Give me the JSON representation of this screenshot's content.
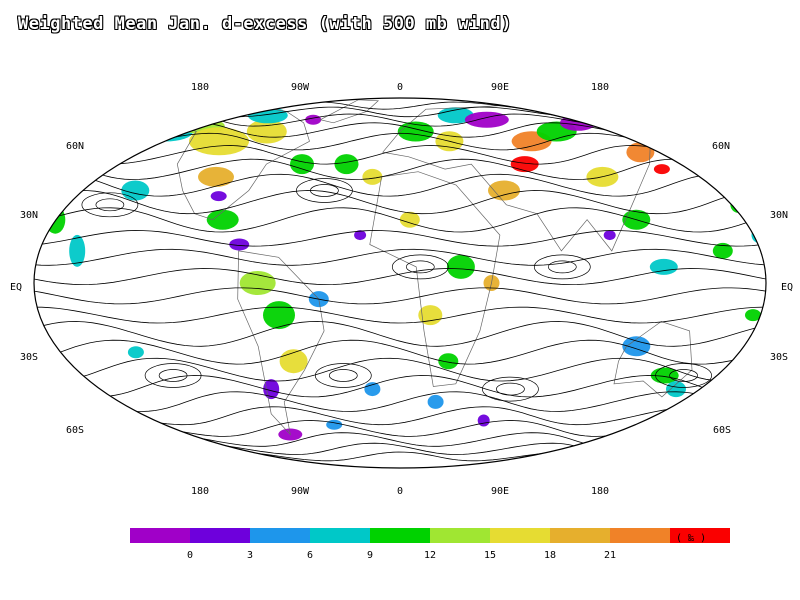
{
  "title": "Weighted Mean Jan. d-excess (with 500 mb wind)",
  "lon_labels_top": [
    "180",
    "90W",
    "0",
    "90E",
    "180"
  ],
  "lon_labels_bottom": [
    "180",
    "90W",
    "0",
    "90E",
    "180"
  ],
  "lat_labels_left": [
    "60N",
    "30N",
    "EQ",
    "30S",
    "60S"
  ],
  "lat_labels_right": [
    "60N",
    "30N",
    "EQ",
    "30S",
    "60S"
  ],
  "colorbar": {
    "colors": [
      "#a000c8",
      "#6e00dc",
      "#1e96eb",
      "#00c8c8",
      "#00d200",
      "#a0e632",
      "#e6dc32",
      "#e6af2d",
      "#f08228",
      "#fa0000"
    ],
    "tick_labels": [
      "0",
      "3",
      "6",
      "9",
      "12",
      "15",
      "18",
      "21"
    ],
    "unit": "( ‰ )"
  },
  "patches": [
    {
      "lon": -150,
      "lat": 55,
      "rx": 28,
      "ry": 10,
      "c": "#00c8c8"
    },
    {
      "lon": -130,
      "lat": 58,
      "rx": 22,
      "ry": 8,
      "c": "#a0e632"
    },
    {
      "lon": -110,
      "lat": 50,
      "rx": 30,
      "ry": 14,
      "c": "#e6dc32"
    },
    {
      "lon": -100,
      "lat": 35,
      "rx": 18,
      "ry": 10,
      "c": "#e6af2d"
    },
    {
      "lon": -85,
      "lat": 55,
      "rx": 20,
      "ry": 12,
      "c": "#e6dc32"
    },
    {
      "lon": -95,
      "lat": 65,
      "rx": 20,
      "ry": 8,
      "c": "#00c8c8"
    },
    {
      "lon": -60,
      "lat": 62,
      "rx": 8,
      "ry": 5,
      "c": "#a000c8"
    },
    {
      "lon": -55,
      "lat": 40,
      "rx": 12,
      "ry": 10,
      "c": "#00d200"
    },
    {
      "lon": -140,
      "lat": 30,
      "rx": 14,
      "ry": 10,
      "c": "#00c8c8"
    },
    {
      "lon": -175,
      "lat": 20,
      "rx": 10,
      "ry": 14,
      "c": "#00d200"
    },
    {
      "lon": -160,
      "lat": 10,
      "rx": 8,
      "ry": 16,
      "c": "#00c8c8"
    },
    {
      "lon": -90,
      "lat": 20,
      "rx": 16,
      "ry": 10,
      "c": "#00d200"
    },
    {
      "lon": -95,
      "lat": 28,
      "rx": 8,
      "ry": 5,
      "c": "#6e00dc"
    },
    {
      "lon": -80,
      "lat": 12,
      "rx": 10,
      "ry": 6,
      "c": "#6e00dc"
    },
    {
      "lon": -70,
      "lat": 0,
      "rx": 18,
      "ry": 12,
      "c": "#a0e632"
    },
    {
      "lon": -60,
      "lat": -10,
      "rx": 16,
      "ry": 14,
      "c": "#00d200"
    },
    {
      "lon": -55,
      "lat": -25,
      "rx": 14,
      "ry": 12,
      "c": "#e6dc32"
    },
    {
      "lon": -70,
      "lat": -35,
      "rx": 8,
      "ry": 10,
      "c": "#6e00dc"
    },
    {
      "lon": -70,
      "lat": -55,
      "rx": 12,
      "ry": 6,
      "c": "#a000c8"
    },
    {
      "lon": -40,
      "lat": -5,
      "rx": 10,
      "ry": 8,
      "c": "#1e96eb"
    },
    {
      "lon": -135,
      "lat": -22,
      "rx": 8,
      "ry": 6,
      "c": "#00c8c8"
    },
    {
      "lon": -30,
      "lat": 40,
      "rx": 12,
      "ry": 10,
      "c": "#00d200"
    },
    {
      "lon": -15,
      "lat": 35,
      "rx": 10,
      "ry": 8,
      "c": "#e6dc32"
    },
    {
      "lon": 10,
      "lat": 55,
      "rx": 18,
      "ry": 10,
      "c": "#00d200"
    },
    {
      "lon": 30,
      "lat": 50,
      "rx": 14,
      "ry": 10,
      "c": "#e6dc32"
    },
    {
      "lon": 40,
      "lat": 65,
      "rx": 18,
      "ry": 8,
      "c": "#00c8c8"
    },
    {
      "lon": 60,
      "lat": 62,
      "rx": 22,
      "ry": 8,
      "c": "#a000c8"
    },
    {
      "lon": 80,
      "lat": 50,
      "rx": 20,
      "ry": 10,
      "c": "#f08228"
    },
    {
      "lon": 70,
      "lat": 40,
      "rx": 14,
      "ry": 8,
      "c": "#fa0000"
    },
    {
      "lon": 55,
      "lat": 30,
      "rx": 16,
      "ry": 10,
      "c": "#e6af2d"
    },
    {
      "lon": 100,
      "lat": 55,
      "rx": 20,
      "ry": 10,
      "c": "#00d200"
    },
    {
      "lon": 110,
      "lat": 35,
      "rx": 16,
      "ry": 10,
      "c": "#e6dc32"
    },
    {
      "lon": 120,
      "lat": 60,
      "rx": 18,
      "ry": 8,
      "c": "#a000c8"
    },
    {
      "lon": 140,
      "lat": 45,
      "rx": 14,
      "ry": 10,
      "c": "#f08228"
    },
    {
      "lon": 145,
      "lat": 38,
      "rx": 8,
      "ry": 5,
      "c": "#fa0000"
    },
    {
      "lon": 120,
      "lat": 20,
      "rx": 14,
      "ry": 10,
      "c": "#00d200"
    },
    {
      "lon": 105,
      "lat": 15,
      "rx": 6,
      "ry": 5,
      "c": "#6e00dc"
    },
    {
      "lon": 130,
      "lat": 5,
      "rx": 14,
      "ry": 8,
      "c": "#00c8c8"
    },
    {
      "lon": 160,
      "lat": 10,
      "rx": 10,
      "ry": 8,
      "c": "#00d200"
    },
    {
      "lon": 175,
      "lat": 25,
      "rx": 8,
      "ry": 8,
      "c": "#00d200"
    },
    {
      "lon": 180,
      "lat": 15,
      "rx": 8,
      "ry": 8,
      "c": "#00c8c8"
    },
    {
      "lon": 30,
      "lat": 5,
      "rx": 14,
      "ry": 12,
      "c": "#00d200"
    },
    {
      "lon": 15,
      "lat": -10,
      "rx": 12,
      "ry": 10,
      "c": "#e6dc32"
    },
    {
      "lon": 25,
      "lat": -25,
      "rx": 10,
      "ry": 8,
      "c": "#00d200"
    },
    {
      "lon": 45,
      "lat": 0,
      "rx": 8,
      "ry": 8,
      "c": "#e6af2d"
    },
    {
      "lon": -20,
      "lat": 15,
      "rx": 6,
      "ry": 5,
      "c": "#6e00dc"
    },
    {
      "lon": 5,
      "lat": 20,
      "rx": 10,
      "ry": 8,
      "c": "#e6dc32"
    },
    {
      "lon": -15,
      "lat": -35,
      "rx": 8,
      "ry": 7,
      "c": "#1e96eb"
    },
    {
      "lon": 20,
      "lat": -40,
      "rx": 8,
      "ry": 7,
      "c": "#1e96eb"
    },
    {
      "lon": 50,
      "lat": -48,
      "rx": 6,
      "ry": 6,
      "c": "#6e00dc"
    },
    {
      "lon": 120,
      "lat": -20,
      "rx": 14,
      "ry": 10,
      "c": "#1e96eb"
    },
    {
      "lon": 140,
      "lat": -30,
      "rx": 14,
      "ry": 8,
      "c": "#00d200"
    },
    {
      "lon": 150,
      "lat": -35,
      "rx": 10,
      "ry": 8,
      "c": "#00c8c8"
    },
    {
      "lon": 170,
      "lat": -40,
      "rx": 8,
      "ry": 6,
      "c": "#00d200"
    },
    {
      "lon": -40,
      "lat": -50,
      "rx": 8,
      "ry": 5,
      "c": "#1e96eb"
    },
    {
      "lon": 175,
      "lat": -10,
      "rx": 8,
      "ry": 6,
      "c": "#00d200"
    }
  ]
}
